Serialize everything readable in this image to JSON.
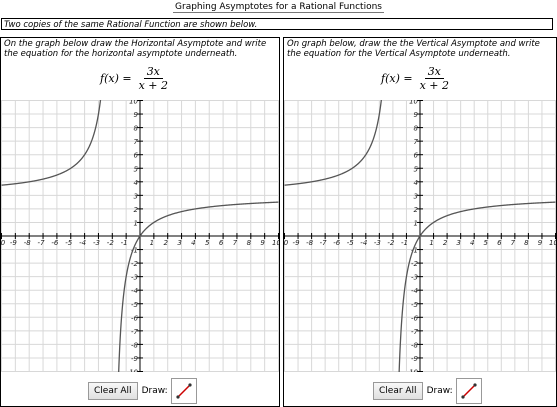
{
  "title": "Graphing Asymptotes for a Rational Functions",
  "subtitle": "Two copies of the same Rational Function are shown below.",
  "panels": [
    {
      "instruction": "On the graph below draw the Horizontal Asymptote and write the equation for the horizontal asymptote underneath.",
      "formula": {
        "lhs": "f(x) =",
        "numerator": "3x",
        "denominator": "x + 2"
      },
      "clear_label": "Clear All",
      "draw_label": "Draw:"
    },
    {
      "instruction": "On graph below, draw the the Vertical Asymptote and write the equation for the Vertical Asymptote underneath.",
      "formula": {
        "lhs": "f(x) =",
        "numerator": "3x",
        "denominator": "x + 2"
      },
      "clear_label": "Clear All",
      "draw_label": "Draw:"
    }
  ],
  "chart_data": {
    "type": "line",
    "function": "3x/(x+2)",
    "xlim": [
      -10,
      10
    ],
    "ylim": [
      -10,
      10
    ],
    "x_ticks": [
      "-10",
      "-9",
      "-8",
      "-7",
      "-6",
      "-5",
      "-4",
      "-3",
      "-2",
      "-1",
      "1",
      "2",
      "3",
      "4",
      "5",
      "6",
      "7",
      "8",
      "9",
      "10"
    ],
    "y_ticks": [
      "10",
      "9",
      "8",
      "7",
      "6",
      "5",
      "4",
      "3",
      "2",
      "1",
      "-1",
      "-2",
      "-3",
      "-4",
      "-5",
      "-6",
      "-7",
      "-8",
      "-9",
      "-10"
    ],
    "grid": true
  },
  "colors": {
    "curve": "#555555",
    "grid": "#d8d8d8",
    "axis": "#000000",
    "pencil": "#cc0000"
  }
}
